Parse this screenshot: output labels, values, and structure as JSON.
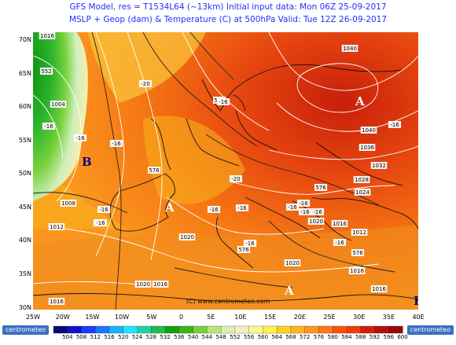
{
  "header": {
    "line1": "GFS Model, res = T1534L64 (~13km)   Initial input data: Mon 06Z 25-09-2017",
    "line2": "MSLP + Geop (dam) & Temperature (C) at 500hPa   Valid: Tue 12Z 26-09-2017"
  },
  "axes": {
    "lat_labels": [
      "70N",
      "65N",
      "60N",
      "55N",
      "50N",
      "45N",
      "40N",
      "35N",
      "30N"
    ],
    "lon_labels": [
      "25W",
      "20W",
      "15W",
      "10W",
      "5W",
      "0",
      "5E",
      "10E",
      "15E",
      "20E",
      "25E",
      "30E",
      "35E",
      "40E"
    ]
  },
  "pressure_centers": [
    {
      "letter": "A",
      "kind": "high",
      "color": "#ffffff"
    },
    {
      "letter": "A",
      "kind": "high",
      "color": "#ffffff"
    },
    {
      "letter": "A",
      "kind": "high",
      "color": "#ffffff"
    },
    {
      "letter": "B",
      "kind": "low",
      "color": "#0a0a6e"
    },
    {
      "letter": "B",
      "kind": "low",
      "color": "#0a0a6e"
    }
  ],
  "isobar_labels": [
    "1016",
    "552",
    "1004",
    "1008",
    "1012",
    "1020",
    "1016",
    "1020",
    "1020",
    "1040",
    "1040",
    "1036",
    "1032",
    "1028",
    "1024",
    "1016",
    "1012",
    "1016",
    "1020",
    "1016",
    "1016"
  ],
  "geopotential_labels": [
    "576",
    "576",
    "576",
    "576",
    "576"
  ],
  "temperature_labels": [
    "-16",
    "-16",
    "-16",
    "-20",
    "-16",
    "-16",
    "-16",
    "-16",
    "-16",
    "-16",
    "-20",
    "-16",
    "-16",
    "-16",
    "-16",
    "-16",
    "-16",
    "-16"
  ],
  "copyright": "(C) www.centrometeo.com",
  "colorbar": {
    "ticks": [
      "504",
      "508",
      "512",
      "516",
      "520",
      "524",
      "528",
      "532",
      "536",
      "540",
      "544",
      "548",
      "552",
      "556",
      "560",
      "564",
      "568",
      "572",
      "576",
      "580",
      "584",
      "588",
      "592",
      "596",
      "600"
    ],
    "colors": [
      "#0a0a7a",
      "#1010c8",
      "#1c3cff",
      "#1c78ff",
      "#18b4ff",
      "#1ee6ff",
      "#1ed2a0",
      "#1ebe4a",
      "#14a014",
      "#3cb414",
      "#78d23c",
      "#b4e678",
      "#dcf0b4",
      "#f0f0be",
      "#fafa8c",
      "#fff04b",
      "#ffd21e",
      "#ffb41e",
      "#ff961e",
      "#ff7814",
      "#ff500a",
      "#f03c0a",
      "#d21e0a",
      "#b4100a",
      "#960a0a"
    ],
    "logo_left": "centrometeo",
    "logo_right": "centrometeo"
  }
}
